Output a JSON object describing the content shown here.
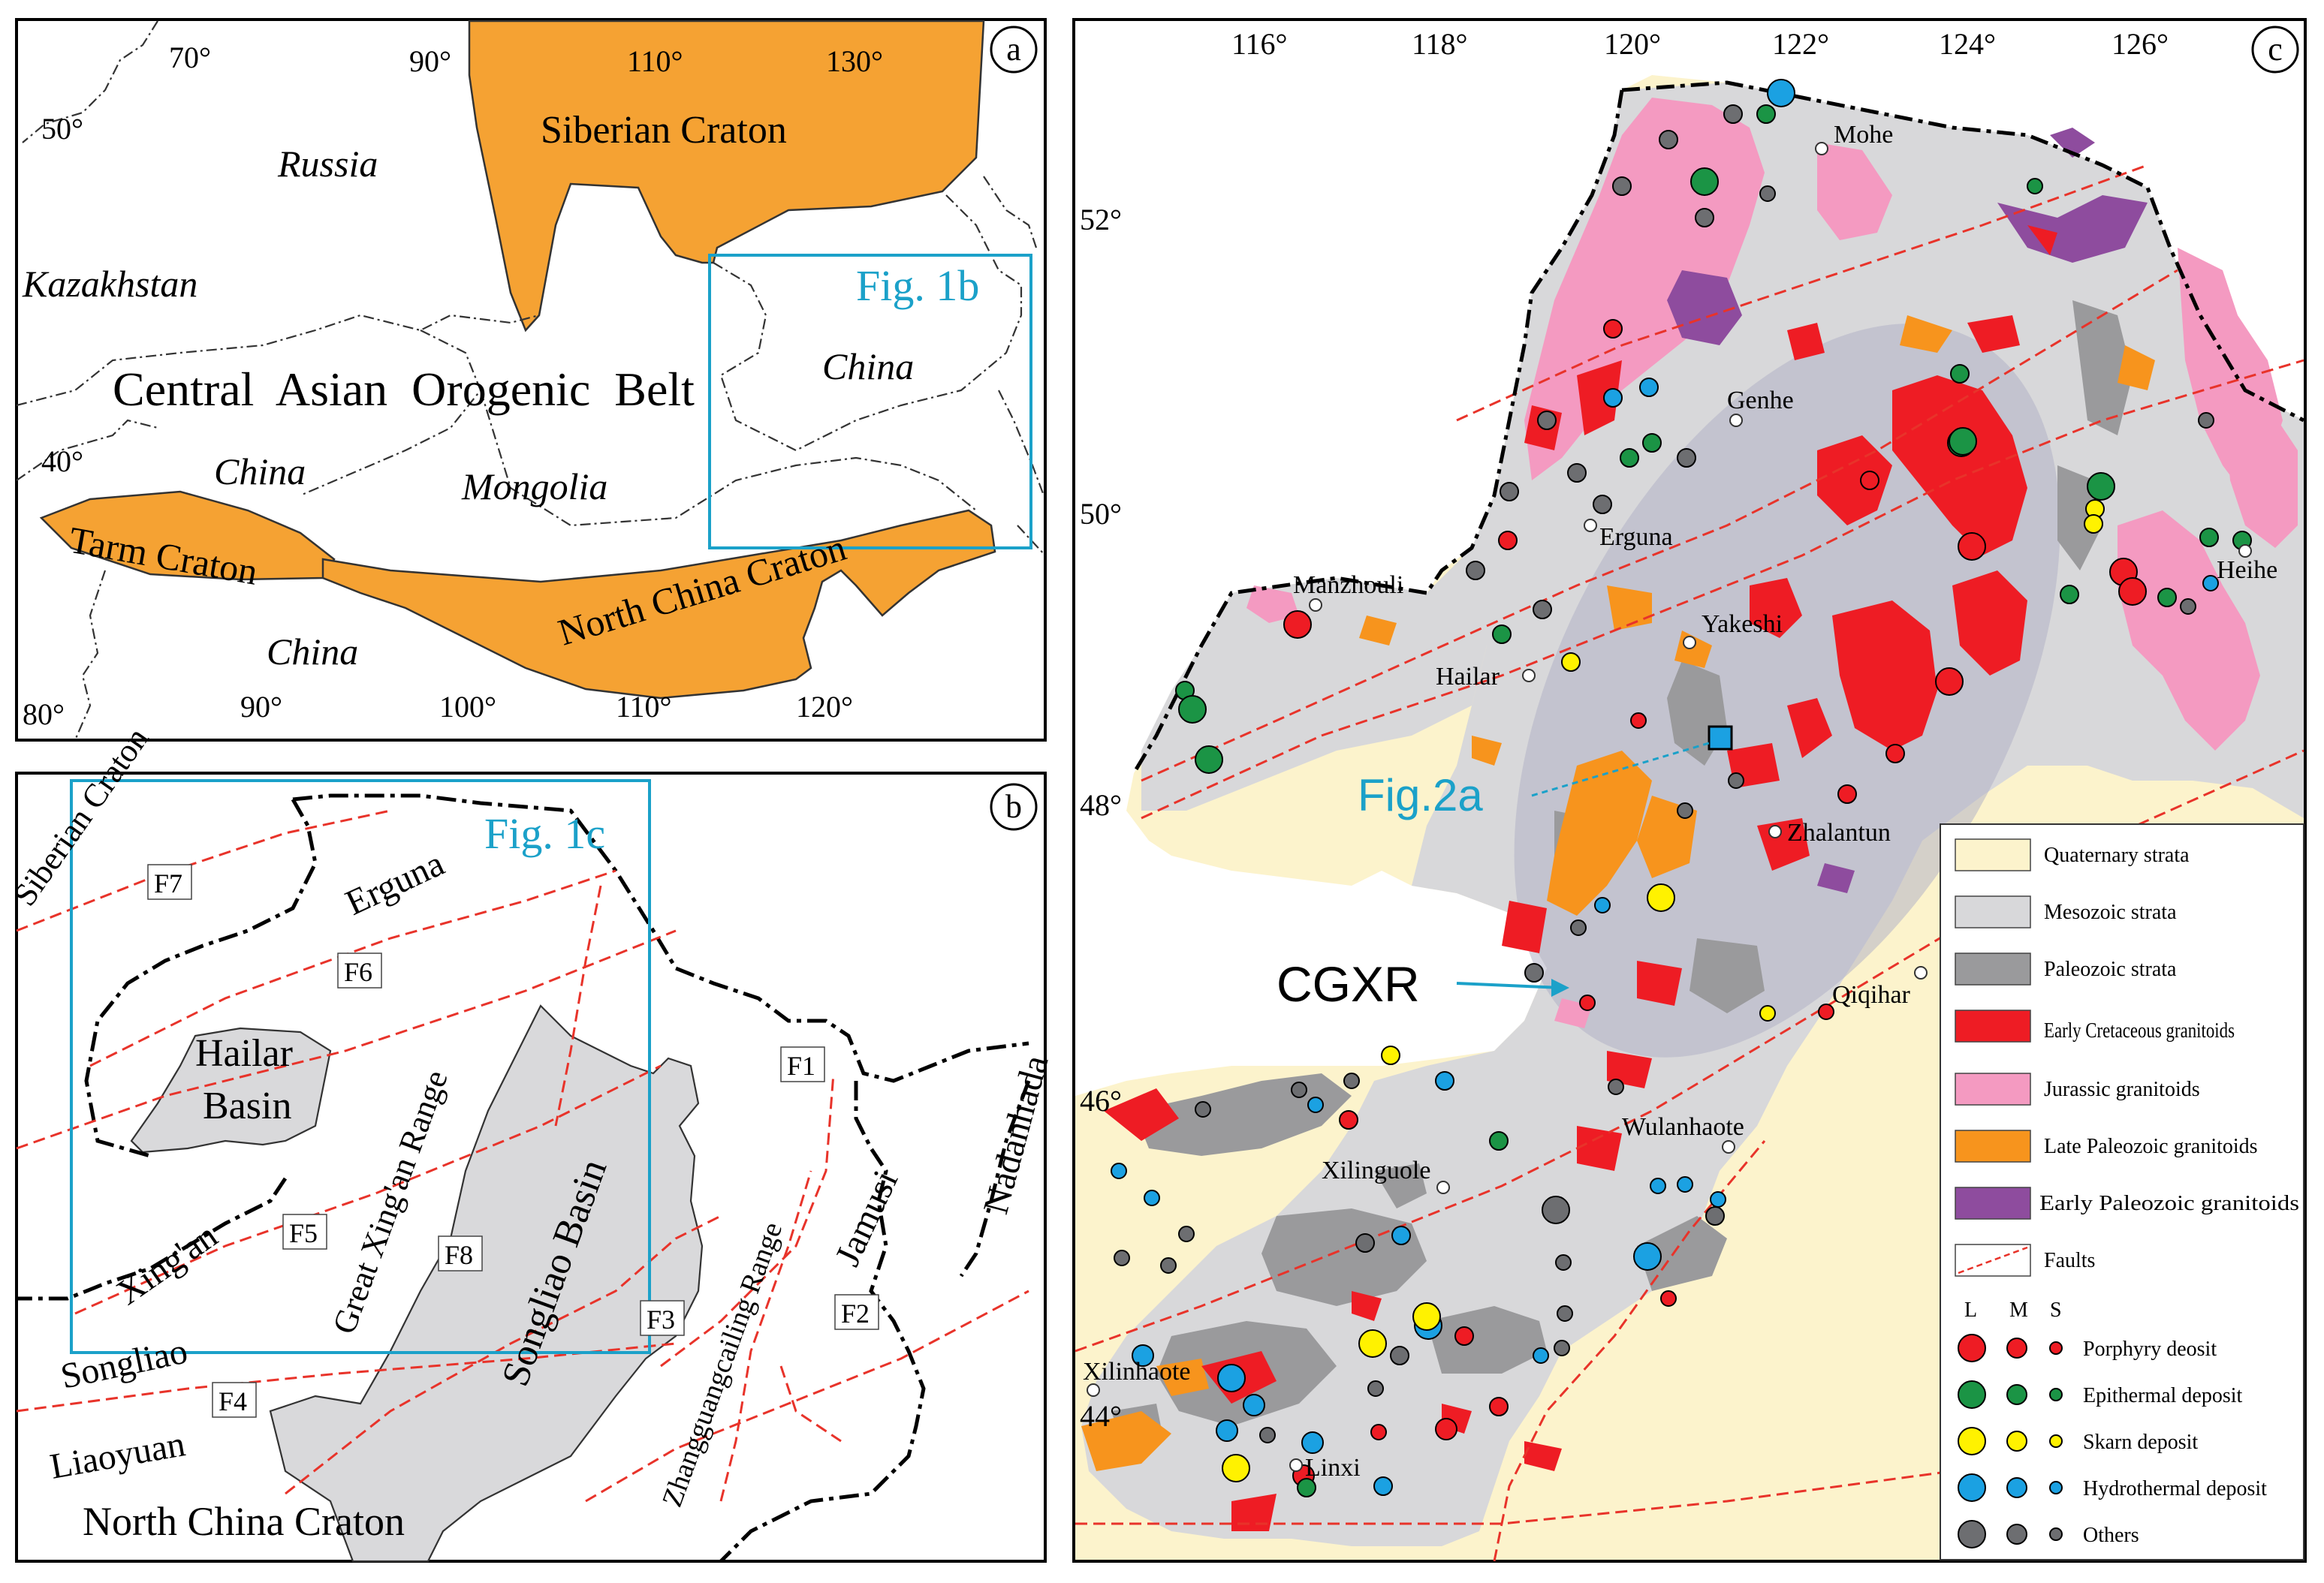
{
  "colors": {
    "craton": "#F5A233",
    "quaternary": "#FCF3CC",
    "mesozoic": "#D8D8DA",
    "paleozoic": "#9A9A9C",
    "early_cretaceous": "#EE1C24",
    "jurassic": "#F49AC1",
    "late_paleozoic": "#F7941D",
    "early_paleozoic": "#8E4C9E",
    "fault": "#E8332A",
    "highlight": "#1BA1C9",
    "porphyry": "#EE1C24",
    "epithermal": "#1B9445",
    "skarn": "#FFF200",
    "hydrothermal": "#1BA1E2",
    "others": "#6D6E71",
    "basin": "#D9D9DB"
  },
  "panel_a": {
    "letter": "a",
    "lon_ticks": [
      "70°",
      "90°",
      "110°",
      "130°"
    ],
    "lon_ticks_bottom": [
      "80°",
      "90°",
      "100°",
      "110°",
      "120°"
    ],
    "lat_ticks": [
      "50°",
      "40°"
    ],
    "labels": {
      "siberian_craton": "Siberian Craton",
      "russia": "Russia",
      "kazakhstan": "Kazakhstan",
      "caob": "Central  Asian  Orogenic  Belt",
      "china_west": "China",
      "mongolia": "Mongolia",
      "tarm_craton": "Tarm Craton",
      "north_china_craton": "North China Craton",
      "china_south": "China",
      "china_east": "China"
    },
    "inset_label": "Fig. 1b"
  },
  "panel_b": {
    "letter": "b",
    "inset_label": "Fig. 1c",
    "labels": {
      "siberian_craton": "Siberian Craton",
      "erguna": "Erguna",
      "hailar_basin_1": "Hailar",
      "hailar_basin_2": "Basin",
      "great_xingan": "Great Xing'an Range",
      "songliao_basin": "Songliao Basin",
      "xingan": "Xing'an",
      "songliao": "Songliao",
      "liaoyuan": "Liaoyuan",
      "north_china_craton": "North China Craton",
      "zhangguangcailing": "Zhangguangcailing Range",
      "jamusi": "Jamusi",
      "nadanhada": "Nadanhada"
    },
    "faults": [
      "F1",
      "F2",
      "F3",
      "F4",
      "F5",
      "F6",
      "F7",
      "F8"
    ]
  },
  "panel_c": {
    "letter": "c",
    "lon_ticks": [
      "116°",
      "118°",
      "120°",
      "122°",
      "124°",
      "126°"
    ],
    "lat_ticks": [
      "52°",
      "50°",
      "48°",
      "46°",
      "44°"
    ],
    "cities": [
      "Mohe",
      "Genhe",
      "Erguna",
      "Manzhouli",
      "Yakeshi",
      "Hailar",
      "Zhalantun",
      "Qiqihar",
      "Wulanhaote",
      "Xilinguole",
      "Xilinhaote",
      "Linxi",
      "Heihe"
    ],
    "annotations": {
      "fig2a": "Fig.2a",
      "cgxr": "CGXR"
    },
    "legend": {
      "units": [
        {
          "label": "Quaternary strata",
          "color": "#FCF3CC"
        },
        {
          "label": "Mesozoic strata",
          "color": "#D8D8DA"
        },
        {
          "label": "Paleozoic strata",
          "color": "#9A9A9C"
        },
        {
          "label": "Early Cretaceous granitoids",
          "color": "#EE1C24"
        },
        {
          "label": "Jurassic granitoids",
          "color": "#F49AC1"
        },
        {
          "label": "Late Paleozoic granitoids",
          "color": "#F7941D"
        },
        {
          "label": "Early Paleozoic granitoids",
          "color": "#8E4C9E"
        }
      ],
      "faults_label": "Faults",
      "size_headers": [
        "L",
        "M",
        "S"
      ],
      "deposits": [
        {
          "label": "Porphyry deosit",
          "color": "#EE1C24"
        },
        {
          "label": "Epithermal deposit",
          "color": "#1B9445"
        },
        {
          "label": "Skarn deposit",
          "color": "#FFF200"
        },
        {
          "label": "Hydrothermal deposit",
          "color": "#1BA1E2"
        },
        {
          "label": "Others",
          "color": "#6D6E71"
        }
      ]
    }
  }
}
